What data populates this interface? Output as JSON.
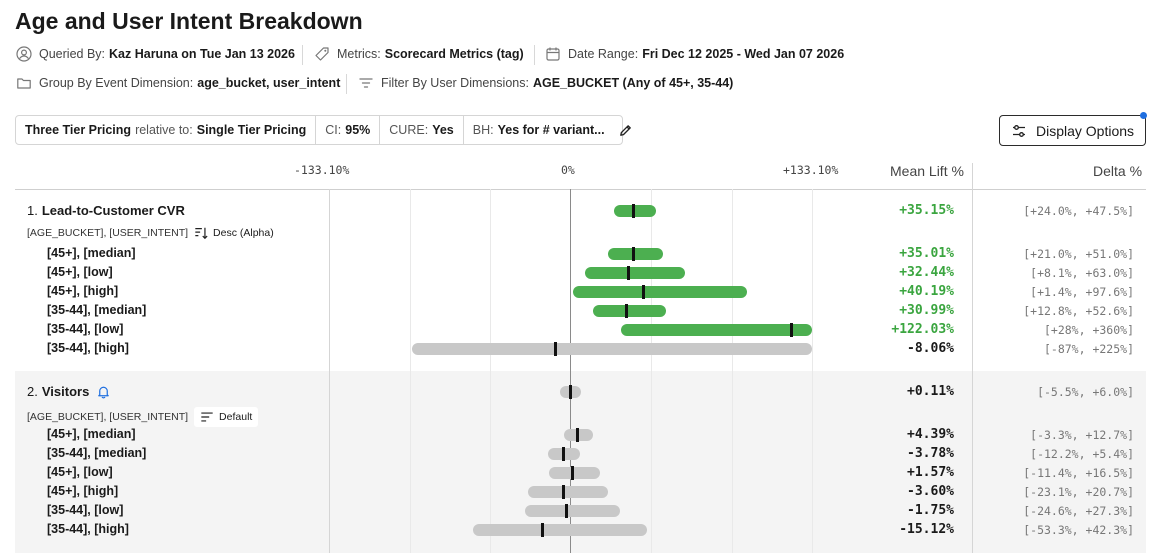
{
  "header": {
    "title": "Age and User Intent Breakdown",
    "queried_by_label": "Queried By:",
    "queried_by_value": "Kaz Haruna on Tue Jan 13 2026",
    "metrics_label": "Metrics:",
    "metrics_value": "Scorecard Metrics (tag)",
    "date_range_label": "Date Range:",
    "date_range_value": "Fri Dec 12 2025 - Wed Jan 07 2026",
    "group_by_label": "Group By Event Dimension:",
    "group_by_value": "age_bucket, user_intent",
    "filter_label": "Filter By User Dimensions:",
    "filter_value": "AGE_BUCKET (Any of 45+, 35-44)"
  },
  "summary": {
    "variant": "Three Tier Pricing",
    "relative_to_label": "relative to:",
    "baseline": "Single Tier Pricing",
    "ci_label": "CI:",
    "ci_value": "95%",
    "cure_label": "CURE:",
    "cure_value": "Yes",
    "bh_label": "BH:",
    "bh_value": "Yes for # variant..."
  },
  "display_options_label": "Display Options",
  "axis": {
    "range": [
      -133.1,
      133.1
    ],
    "tick_labels": [
      "-133.10%",
      "0%",
      "+133.10%"
    ]
  },
  "columns": {
    "mean_lift": "Mean Lift %",
    "delta": "Delta %"
  },
  "colors": {
    "positive": "#4caf50",
    "neutral": "#c8c8c8",
    "positive_text": "#3aa53f",
    "neutral_text": "#1a1a1a",
    "accent": "#1f6fe0"
  },
  "metrics": [
    {
      "index": "1.",
      "name": "Lead-to-Customer CVR",
      "dims": "[AGE_BUCKET], [USER_INTENT]",
      "sort_label": "Desc (Alpha)",
      "bell": false,
      "overall": {
        "mean": 35.15,
        "lo": 24.0,
        "hi": 47.5,
        "lift": "+35.15%",
        "delta": "[+24.0%, +47.5%]",
        "sig": true
      },
      "rows": [
        {
          "label": "[45+], [median]",
          "mean": 35.01,
          "lo": 21.0,
          "hi": 51.0,
          "lift": "+35.01%",
          "delta": "[+21.0%, +51.0%]",
          "sig": true
        },
        {
          "label": "[45+], [low]",
          "mean": 32.44,
          "lo": 8.1,
          "hi": 63.0,
          "lift": "+32.44%",
          "delta": "[+8.1%, +63.0%]",
          "sig": true
        },
        {
          "label": "[45+], [high]",
          "mean": 40.19,
          "lo": 1.4,
          "hi": 97.6,
          "lift": "+40.19%",
          "delta": "[+1.4%, +97.6%]",
          "sig": true
        },
        {
          "label": "[35-44], [median]",
          "mean": 30.99,
          "lo": 12.8,
          "hi": 52.6,
          "lift": "+30.99%",
          "delta": "[+12.8%, +52.6%]",
          "sig": true
        },
        {
          "label": "[35-44], [low]",
          "mean": 122.03,
          "lo": 28,
          "hi": 360,
          "lift": "+122.03%",
          "delta": "[+28%, +360%]",
          "sig": true
        },
        {
          "label": "[35-44], [high]",
          "mean": -8.06,
          "lo": -87,
          "hi": 225,
          "lift": "-8.06%",
          "delta": "[-87%, +225%]",
          "sig": false
        }
      ]
    },
    {
      "index": "2.",
      "name": "Visitors",
      "dims": "[AGE_BUCKET], [USER_INTENT]",
      "sort_label": "Default",
      "bell": true,
      "overall": {
        "mean": 0.11,
        "lo": -5.5,
        "hi": 6.0,
        "lift": "+0.11%",
        "delta": "[-5.5%, +6.0%]",
        "sig": false
      },
      "rows": [
        {
          "label": "[45+], [median]",
          "mean": 4.39,
          "lo": -3.3,
          "hi": 12.7,
          "lift": "+4.39%",
          "delta": "[-3.3%, +12.7%]",
          "sig": false
        },
        {
          "label": "[35-44], [median]",
          "mean": -3.78,
          "lo": -12.2,
          "hi": 5.4,
          "lift": "-3.78%",
          "delta": "[-12.2%, +5.4%]",
          "sig": false
        },
        {
          "label": "[45+], [low]",
          "mean": 1.57,
          "lo": -11.4,
          "hi": 16.5,
          "lift": "+1.57%",
          "delta": "[-11.4%, +16.5%]",
          "sig": false
        },
        {
          "label": "[45+], [high]",
          "mean": -3.6,
          "lo": -23.1,
          "hi": 20.7,
          "lift": "-3.60%",
          "delta": "[-23.1%, +20.7%]",
          "sig": false
        },
        {
          "label": "[35-44], [low]",
          "mean": -1.75,
          "lo": -24.6,
          "hi": 27.3,
          "lift": "-1.75%",
          "delta": "[-24.6%, +27.3%]",
          "sig": false
        },
        {
          "label": "[35-44], [high]",
          "mean": -15.12,
          "lo": -53.3,
          "hi": 42.3,
          "lift": "-15.12%",
          "delta": "[-53.3%, +42.3%]",
          "sig": false
        }
      ]
    }
  ]
}
